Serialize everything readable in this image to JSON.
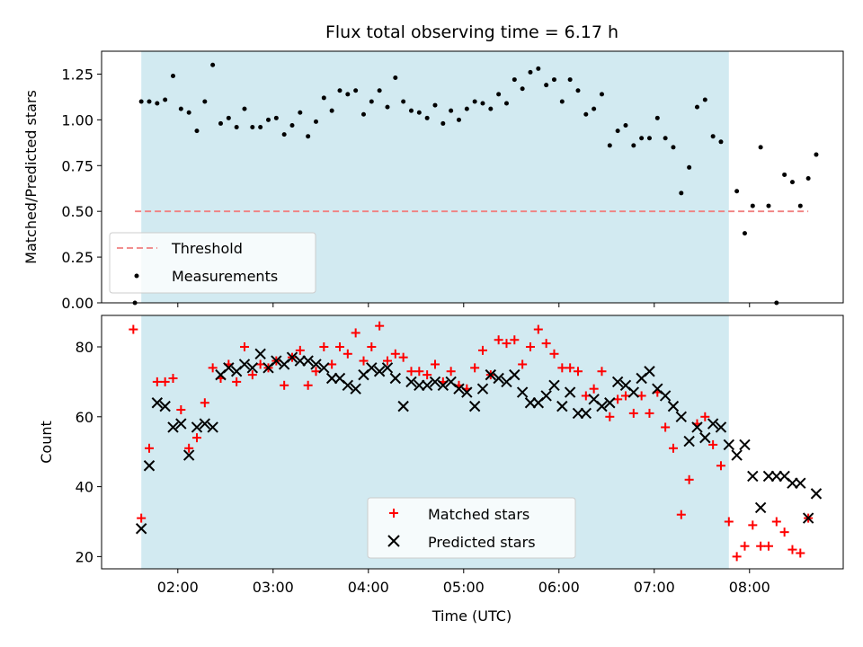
{
  "chart_data": [
    {
      "type": "scatter",
      "title": "Flux total observing time = 6.17 h",
      "xlabel": "",
      "ylabel": "Matched/Predicted stars",
      "ylim": [
        0,
        1.375
      ],
      "yticks": [
        "0.00",
        "0.25",
        "0.50",
        "0.75",
        "1.00",
        "1.25"
      ],
      "shaded_span": [
        "01:37",
        "07:47"
      ],
      "threshold": {
        "label": "Threshold",
        "value": 0.5,
        "x_start": "01:33",
        "x_end": "08:37",
        "color": "#f08080"
      },
      "series": [
        {
          "name": "Measurements",
          "color": "#000000",
          "points": [
            [
              "01:33",
              0.0
            ],
            [
              "01:37",
              1.1
            ],
            [
              "01:42",
              1.1
            ],
            [
              "01:47",
              1.09
            ],
            [
              "01:52",
              1.11
            ],
            [
              "01:57",
              1.24
            ],
            [
              "02:02",
              1.06
            ],
            [
              "02:07",
              1.04
            ],
            [
              "02:12",
              0.94
            ],
            [
              "02:17",
              1.1
            ],
            [
              "02:22",
              1.3
            ],
            [
              "02:27",
              0.98
            ],
            [
              "02:32",
              1.01
            ],
            [
              "02:37",
              0.96
            ],
            [
              "02:42",
              1.06
            ],
            [
              "02:47",
              0.96
            ],
            [
              "02:52",
              0.96
            ],
            [
              "02:57",
              1.0
            ],
            [
              "03:02",
              1.01
            ],
            [
              "03:07",
              0.92
            ],
            [
              "03:12",
              0.97
            ],
            [
              "03:17",
              1.04
            ],
            [
              "03:22",
              0.91
            ],
            [
              "03:27",
              0.99
            ],
            [
              "03:32",
              1.12
            ],
            [
              "03:37",
              1.05
            ],
            [
              "03:42",
              1.16
            ],
            [
              "03:47",
              1.14
            ],
            [
              "03:52",
              1.16
            ],
            [
              "03:57",
              1.03
            ],
            [
              "04:02",
              1.1
            ],
            [
              "04:07",
              1.16
            ],
            [
              "04:12",
              1.07
            ],
            [
              "04:17",
              1.23
            ],
            [
              "04:22",
              1.1
            ],
            [
              "04:27",
              1.05
            ],
            [
              "04:32",
              1.04
            ],
            [
              "04:37",
              1.01
            ],
            [
              "04:42",
              1.08
            ],
            [
              "04:47",
              0.98
            ],
            [
              "04:52",
              1.05
            ],
            [
              "04:57",
              1.0
            ],
            [
              "05:02",
              1.06
            ],
            [
              "05:07",
              1.1
            ],
            [
              "05:12",
              1.09
            ],
            [
              "05:17",
              1.06
            ],
            [
              "05:22",
              1.14
            ],
            [
              "05:27",
              1.09
            ],
            [
              "05:32",
              1.22
            ],
            [
              "05:37",
              1.17
            ],
            [
              "05:42",
              1.26
            ],
            [
              "05:47",
              1.28
            ],
            [
              "05:52",
              1.19
            ],
            [
              "05:57",
              1.22
            ],
            [
              "06:02",
              1.1
            ],
            [
              "06:07",
              1.22
            ],
            [
              "06:12",
              1.16
            ],
            [
              "06:17",
              1.03
            ],
            [
              "06:22",
              1.06
            ],
            [
              "06:27",
              1.14
            ],
            [
              "06:32",
              0.86
            ],
            [
              "06:37",
              0.94
            ],
            [
              "06:42",
              0.97
            ],
            [
              "06:47",
              0.86
            ],
            [
              "06:52",
              0.9
            ],
            [
              "06:57",
              0.9
            ],
            [
              "07:02",
              1.01
            ],
            [
              "07:07",
              0.9
            ],
            [
              "07:12",
              0.85
            ],
            [
              "07:17",
              0.6
            ],
            [
              "07:22",
              0.74
            ],
            [
              "07:27",
              1.07
            ],
            [
              "07:32",
              1.11
            ],
            [
              "07:37",
              0.91
            ],
            [
              "07:42",
              0.88
            ],
            [
              "07:52",
              0.61
            ],
            [
              "07:57",
              0.38
            ],
            [
              "08:02",
              0.53
            ],
            [
              "08:07",
              0.85
            ],
            [
              "08:12",
              0.53
            ],
            [
              "08:17",
              0.0
            ],
            [
              "08:22",
              0.7
            ],
            [
              "08:27",
              0.66
            ],
            [
              "08:32",
              0.53
            ],
            [
              "08:37",
              0.68
            ],
            [
              "08:42",
              0.81
            ]
          ]
        }
      ],
      "legend": {
        "placement": "lower-left",
        "entries": [
          "Threshold",
          "Measurements"
        ]
      }
    },
    {
      "type": "scatter",
      "title": "",
      "xlabel": "Time (UTC)",
      "ylabel": "Count",
      "ylim": [
        16.5,
        89
      ],
      "xlim": [
        "01:12",
        "08:59"
      ],
      "xticks": [
        "02:00",
        "03:00",
        "04:00",
        "05:00",
        "06:00",
        "07:00",
        "08:00"
      ],
      "yticks": [
        "20",
        "40",
        "60",
        "80"
      ],
      "shaded_span": [
        "01:37",
        "07:47"
      ],
      "series": [
        {
          "name": "Matched stars",
          "marker": "plus",
          "color": "#ff0000",
          "points": [
            [
              "01:32",
              85
            ],
            [
              "01:37",
              31
            ],
            [
              "01:42",
              51
            ],
            [
              "01:47",
              70
            ],
            [
              "01:52",
              70
            ],
            [
              "01:57",
              71
            ],
            [
              "02:02",
              62
            ],
            [
              "02:07",
              51
            ],
            [
              "02:12",
              54
            ],
            [
              "02:17",
              64
            ],
            [
              "02:22",
              74
            ],
            [
              "02:27",
              71
            ],
            [
              "02:32",
              75
            ],
            [
              "02:37",
              70
            ],
            [
              "02:42",
              80
            ],
            [
              "02:47",
              72
            ],
            [
              "02:52",
              75
            ],
            [
              "02:57",
              74
            ],
            [
              "03:02",
              76
            ],
            [
              "03:07",
              69
            ],
            [
              "03:12",
              77
            ],
            [
              "03:17",
              79
            ],
            [
              "03:22",
              69
            ],
            [
              "03:27",
              73
            ],
            [
              "03:32",
              80
            ],
            [
              "03:37",
              75
            ],
            [
              "03:42",
              80
            ],
            [
              "03:47",
              78
            ],
            [
              "03:52",
              84
            ],
            [
              "03:57",
              76
            ],
            [
              "04:02",
              80
            ],
            [
              "04:07",
              86
            ],
            [
              "04:12",
              76
            ],
            [
              "04:17",
              78
            ],
            [
              "04:22",
              77
            ],
            [
              "04:27",
              73
            ],
            [
              "04:32",
              73
            ],
            [
              "04:37",
              72
            ],
            [
              "04:42",
              75
            ],
            [
              "04:47",
              70
            ],
            [
              "04:52",
              73
            ],
            [
              "04:57",
              69
            ],
            [
              "05:02",
              68
            ],
            [
              "05:07",
              74
            ],
            [
              "05:12",
              79
            ],
            [
              "05:17",
              72
            ],
            [
              "05:22",
              82
            ],
            [
              "05:27",
              81
            ],
            [
              "05:32",
              82
            ],
            [
              "05:37",
              75
            ],
            [
              "05:42",
              80
            ],
            [
              "05:47",
              85
            ],
            [
              "05:52",
              81
            ],
            [
              "05:57",
              78
            ],
            [
              "06:02",
              74
            ],
            [
              "06:07",
              74
            ],
            [
              "06:12",
              73
            ],
            [
              "06:17",
              66
            ],
            [
              "06:22",
              68
            ],
            [
              "06:27",
              73
            ],
            [
              "06:32",
              60
            ],
            [
              "06:37",
              65
            ],
            [
              "06:42",
              66
            ],
            [
              "06:47",
              61
            ],
            [
              "06:52",
              66
            ],
            [
              "06:57",
              61
            ],
            [
              "07:02",
              67
            ],
            [
              "07:07",
              57
            ],
            [
              "07:12",
              51
            ],
            [
              "07:17",
              32
            ],
            [
              "07:22",
              42
            ],
            [
              "07:27",
              58
            ],
            [
              "07:32",
              60
            ],
            [
              "07:37",
              52
            ],
            [
              "07:42",
              46
            ],
            [
              "07:47",
              30
            ],
            [
              "07:52",
              20
            ],
            [
              "07:57",
              23
            ],
            [
              "08:02",
              29
            ],
            [
              "08:07",
              23
            ],
            [
              "08:12",
              23
            ],
            [
              "08:17",
              30
            ],
            [
              "08:22",
              27
            ],
            [
              "08:27",
              22
            ],
            [
              "08:32",
              21
            ],
            [
              "08:37",
              31
            ]
          ]
        },
        {
          "name": "Predicted stars",
          "marker": "x",
          "color": "#000000",
          "points": [
            [
              "01:37",
              28
            ],
            [
              "01:42",
              46
            ],
            [
              "01:47",
              64
            ],
            [
              "01:52",
              63
            ],
            [
              "01:57",
              57
            ],
            [
              "02:02",
              58
            ],
            [
              "02:07",
              49
            ],
            [
              "02:12",
              57
            ],
            [
              "02:17",
              58
            ],
            [
              "02:22",
              57
            ],
            [
              "02:27",
              72
            ],
            [
              "02:32",
              74
            ],
            [
              "02:37",
              73
            ],
            [
              "02:42",
              75
            ],
            [
              "02:47",
              74
            ],
            [
              "02:52",
              78
            ],
            [
              "02:57",
              74
            ],
            [
              "03:02",
              76
            ],
            [
              "03:07",
              75
            ],
            [
              "03:12",
              77
            ],
            [
              "03:17",
              76
            ],
            [
              "03:22",
              76
            ],
            [
              "03:27",
              75
            ],
            [
              "03:32",
              74
            ],
            [
              "03:37",
              71
            ],
            [
              "03:42",
              71
            ],
            [
              "03:47",
              69
            ],
            [
              "03:52",
              68
            ],
            [
              "03:57",
              72
            ],
            [
              "04:02",
              74
            ],
            [
              "04:07",
              73
            ],
            [
              "04:12",
              74
            ],
            [
              "04:17",
              71
            ],
            [
              "04:22",
              63
            ],
            [
              "04:27",
              70
            ],
            [
              "04:32",
              69
            ],
            [
              "04:37",
              69
            ],
            [
              "04:42",
              70
            ],
            [
              "04:47",
              69
            ],
            [
              "04:52",
              70
            ],
            [
              "04:57",
              68
            ],
            [
              "05:02",
              67
            ],
            [
              "05:07",
              63
            ],
            [
              "05:12",
              68
            ],
            [
              "05:17",
              72
            ],
            [
              "05:22",
              71
            ],
            [
              "05:27",
              70
            ],
            [
              "05:32",
              72
            ],
            [
              "05:37",
              67
            ],
            [
              "05:42",
              64
            ],
            [
              "05:47",
              64
            ],
            [
              "05:52",
              66
            ],
            [
              "05:57",
              69
            ],
            [
              "06:02",
              63
            ],
            [
              "06:07",
              67
            ],
            [
              "06:12",
              61
            ],
            [
              "06:17",
              61
            ],
            [
              "06:22",
              65
            ],
            [
              "06:27",
              63
            ],
            [
              "06:32",
              64
            ],
            [
              "06:37",
              70
            ],
            [
              "06:42",
              69
            ],
            [
              "06:47",
              67
            ],
            [
              "06:52",
              71
            ],
            [
              "06:57",
              73
            ],
            [
              "07:02",
              68
            ],
            [
              "07:07",
              66
            ],
            [
              "07:12",
              63
            ],
            [
              "07:17",
              60
            ],
            [
              "07:22",
              53
            ],
            [
              "07:27",
              57
            ],
            [
              "07:32",
              54
            ],
            [
              "07:37",
              58
            ],
            [
              "07:42",
              57
            ],
            [
              "07:47",
              52
            ],
            [
              "07:52",
              49
            ],
            [
              "07:57",
              52
            ],
            [
              "08:02",
              43
            ],
            [
              "08:07",
              34
            ],
            [
              "08:12",
              43
            ],
            [
              "08:17",
              43
            ],
            [
              "08:22",
              43
            ],
            [
              "08:27",
              41
            ],
            [
              "08:32",
              41
            ],
            [
              "08:37",
              31
            ],
            [
              "08:42",
              38
            ]
          ]
        }
      ],
      "legend": {
        "placement": "lower-center",
        "entries": [
          "Matched stars",
          "Predicted stars"
        ]
      }
    }
  ]
}
